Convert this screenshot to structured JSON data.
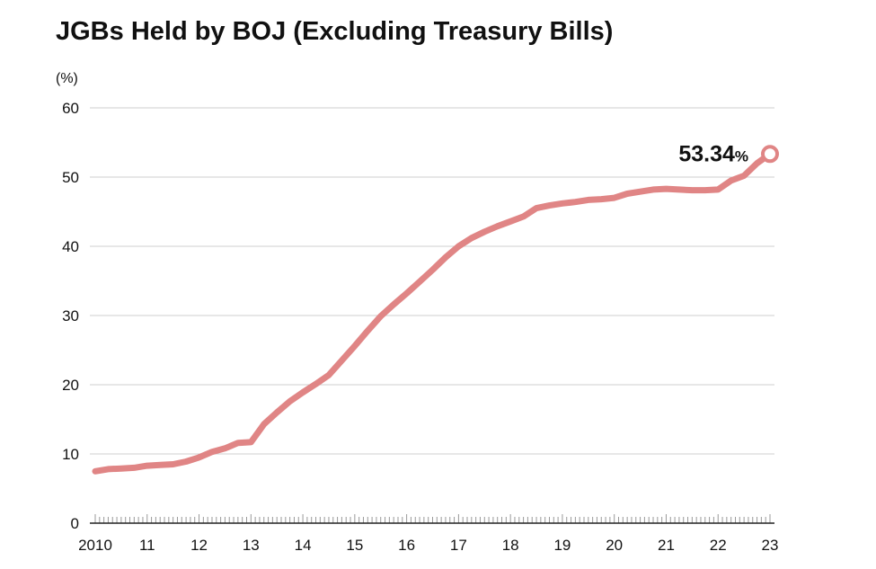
{
  "chart_data": {
    "type": "line",
    "title": "JGBs Held by BOJ (Excluding Treasury Bills)",
    "ylabel": "(%)",
    "xlabel": "",
    "ylim": [
      0,
      60
    ],
    "xlim": [
      2010,
      2023.2
    ],
    "y_ticks": [
      {
        "label": "0",
        "value": 0
      },
      {
        "label": "10",
        "value": 10
      },
      {
        "label": "20",
        "value": 20
      },
      {
        "label": "30",
        "value": 30
      },
      {
        "label": "40",
        "value": 40
      },
      {
        "label": "50",
        "value": 50
      },
      {
        "label": "60",
        "value": 60
      }
    ],
    "x_ticks": [
      {
        "label": "2010",
        "value": 2010
      },
      {
        "label": "11",
        "value": 2011
      },
      {
        "label": "12",
        "value": 2012
      },
      {
        "label": "13",
        "value": 2013
      },
      {
        "label": "14",
        "value": 2014
      },
      {
        "label": "15",
        "value": 2015
      },
      {
        "label": "16",
        "value": 2016
      },
      {
        "label": "17",
        "value": 2017
      },
      {
        "label": "18",
        "value": 2018
      },
      {
        "label": "19",
        "value": 2019
      },
      {
        "label": "20",
        "value": 2020
      },
      {
        "label": "21",
        "value": 2021
      },
      {
        "label": "22",
        "value": 2022
      },
      {
        "label": "23",
        "value": 2023
      }
    ],
    "grid": true,
    "series": [
      {
        "color": "#e08585",
        "x": [
          2010.0,
          2010.25,
          2010.5,
          2010.75,
          2011.0,
          2011.25,
          2011.5,
          2011.75,
          2012.0,
          2012.25,
          2012.5,
          2012.75,
          2013.0,
          2013.25,
          2013.5,
          2013.75,
          2014.0,
          2014.25,
          2014.5,
          2014.75,
          2015.0,
          2015.25,
          2015.5,
          2015.75,
          2016.0,
          2016.25,
          2016.5,
          2016.75,
          2017.0,
          2017.25,
          2017.5,
          2017.75,
          2018.0,
          2018.25,
          2018.5,
          2018.75,
          2019.0,
          2019.25,
          2019.5,
          2019.75,
          2020.0,
          2020.25,
          2020.5,
          2020.75,
          2021.0,
          2021.25,
          2021.5,
          2021.75,
          2022.0,
          2022.25,
          2022.5,
          2022.75,
          2023.0
        ],
        "y": [
          7.5,
          7.8,
          7.9,
          8.0,
          8.3,
          8.4,
          8.5,
          8.9,
          9.5,
          10.3,
          10.8,
          11.6,
          11.7,
          14.3,
          16.0,
          17.6,
          18.9,
          20.1,
          21.4,
          23.5,
          25.6,
          27.8,
          29.9,
          31.6,
          33.2,
          34.9,
          36.6,
          38.4,
          40.0,
          41.2,
          42.1,
          42.9,
          43.6,
          44.3,
          45.5,
          45.9,
          46.2,
          46.4,
          46.7,
          46.8,
          47.0,
          47.6,
          47.9,
          48.2,
          48.3,
          48.2,
          48.1,
          48.1,
          48.2,
          49.5,
          50.2,
          52.0,
          53.34
        ]
      }
    ],
    "annotations": [
      {
        "value": "53.34",
        "unit": "%",
        "x": 2023.0,
        "y": 53.34
      }
    ]
  }
}
